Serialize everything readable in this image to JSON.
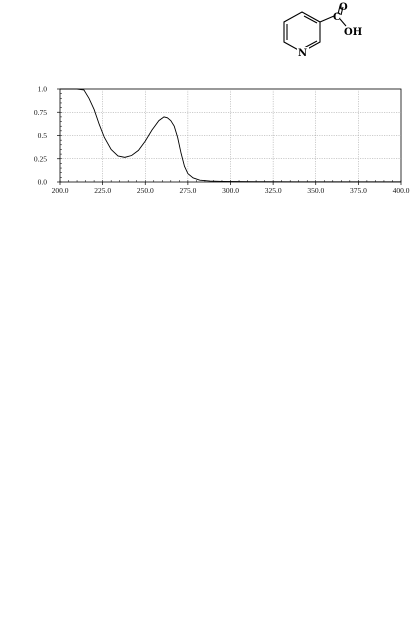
{
  "structure": {
    "icon": "nicotinic-acid-structure-icon",
    "atoms": {
      "n": "N",
      "o": "O",
      "oh": "OH",
      "c": "C"
    }
  },
  "chart_data": {
    "type": "line",
    "title": "",
    "xlabel": "",
    "ylabel": "",
    "xlim": [
      200.0,
      400.0
    ],
    "ylim": [
      0.0,
      1.0
    ],
    "grid": true,
    "legend": "none",
    "x_ticks": [
      "200.0",
      "225.0",
      "250.0",
      "275.0",
      "300.0",
      "325.0",
      "350.0",
      "375.0",
      "400.0"
    ],
    "y_ticks": [
      "0.0",
      "0.25",
      "0.5",
      "0.75",
      "1.0"
    ],
    "series": [
      {
        "color": "#000000",
        "x": [
          200,
          210,
          214,
          217,
          220,
          223,
          226,
          230,
          234,
          238,
          242,
          246,
          250,
          254,
          258,
          261,
          263,
          265,
          267,
          269,
          271,
          273,
          275,
          278,
          282,
          288,
          295,
          305,
          320,
          340,
          360,
          380,
          400
        ],
        "y": [
          1.0,
          1.0,
          0.99,
          0.9,
          0.78,
          0.62,
          0.48,
          0.35,
          0.28,
          0.265,
          0.285,
          0.34,
          0.44,
          0.56,
          0.66,
          0.7,
          0.69,
          0.66,
          0.6,
          0.48,
          0.31,
          0.17,
          0.09,
          0.045,
          0.02,
          0.01,
          0.006,
          0.004,
          0.003,
          0.002,
          0.002,
          0.002,
          0.002
        ]
      }
    ]
  }
}
